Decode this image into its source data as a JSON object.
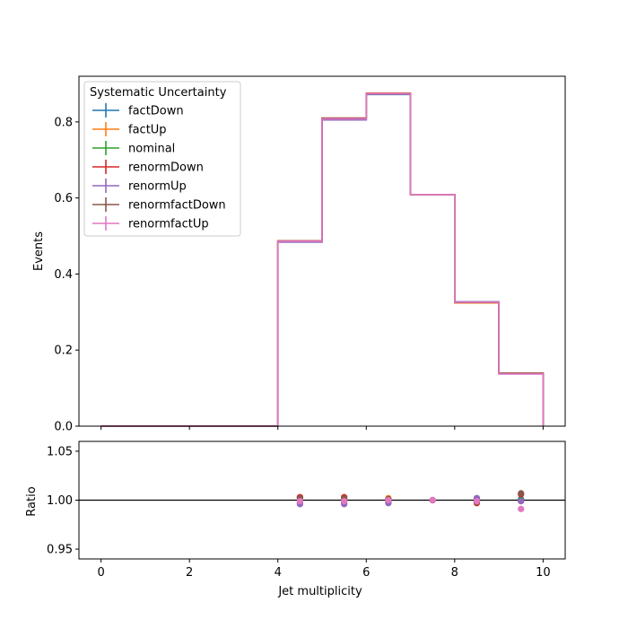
{
  "chart_data": {
    "type": "line",
    "style": "step-histogram with ratio panel",
    "x_bin_edges": [
      0,
      1,
      2,
      3,
      4,
      5,
      6,
      7,
      8,
      9,
      10
    ],
    "xlabel": "Jet multiplicity",
    "xlim": [
      -0.5,
      10.5
    ],
    "x_ticks": [
      "0",
      "2",
      "4",
      "6",
      "8",
      "10"
    ],
    "main": {
      "ylabel": "Events",
      "ylim": [
        0,
        0.92
      ],
      "y_ticks": [
        "0.0",
        "0.2",
        "0.4",
        "0.6",
        "0.8"
      ]
    },
    "ratio": {
      "ylabel": "Ratio",
      "ylim": [
        0.94,
        1.06
      ],
      "y_ticks": [
        "0.95",
        "1.00",
        "1.05"
      ],
      "reference_line": 1.0
    },
    "legend": {
      "title": "Systematic Uncertainty",
      "placement": "upper-left"
    },
    "series": [
      {
        "name": "factDown",
        "color": "#1f77b4",
        "values": [
          0,
          0,
          0,
          0,
          0.484,
          0.806,
          0.872,
          0.609,
          0.327,
          0.138
        ],
        "ratio": [
          null,
          null,
          null,
          null,
          0.997,
          0.997,
          0.998,
          1.0,
          1.002,
          1.001
        ]
      },
      {
        "name": "factUp",
        "color": "#ff7f0e",
        "values": [
          0,
          0,
          0,
          0,
          0.487,
          0.81,
          0.875,
          0.609,
          0.324,
          0.138
        ],
        "ratio": [
          null,
          null,
          null,
          null,
          1.003,
          1.003,
          1.002,
          1.0,
          0.998,
          0.999
        ]
      },
      {
        "name": "nominal",
        "color": "#2ca02c",
        "values": [
          0,
          0,
          0,
          0,
          0.486,
          0.808,
          0.874,
          0.609,
          0.326,
          0.138
        ],
        "ratio": [
          null,
          null,
          null,
          null,
          1.0,
          1.0,
          1.0,
          1.0,
          1.0,
          1.0
        ]
      },
      {
        "name": "renormDown",
        "color": "#d62728",
        "values": [
          0,
          0,
          0,
          0,
          0.487,
          0.81,
          0.875,
          0.609,
          0.325,
          0.139
        ],
        "ratio": [
          null,
          null,
          null,
          null,
          1.003,
          1.003,
          1.001,
          1.0,
          0.997,
          1.006
        ]
      },
      {
        "name": "renormUp",
        "color": "#9467bd",
        "values": [
          0,
          0,
          0,
          0,
          0.484,
          0.805,
          0.873,
          0.609,
          0.327,
          0.138
        ],
        "ratio": [
          null,
          null,
          null,
          null,
          0.996,
          0.996,
          0.997,
          1.0,
          1.002,
          0.999
        ]
      },
      {
        "name": "renormfactDown",
        "color": "#8c564b",
        "values": [
          0,
          0,
          0,
          0,
          0.487,
          0.81,
          0.874,
          0.609,
          0.325,
          0.139
        ],
        "ratio": [
          null,
          null,
          null,
          null,
          1.002,
          1.002,
          1.001,
          1.0,
          0.998,
          1.007
        ]
      },
      {
        "name": "renormfactUp",
        "color": "#e377c2",
        "values": [
          0,
          0,
          0,
          0,
          0.486,
          0.808,
          0.874,
          0.609,
          0.326,
          0.137
        ],
        "ratio": [
          null,
          null,
          null,
          null,
          0.999,
          0.999,
          1.0,
          1.0,
          0.999,
          0.991
        ]
      }
    ]
  }
}
